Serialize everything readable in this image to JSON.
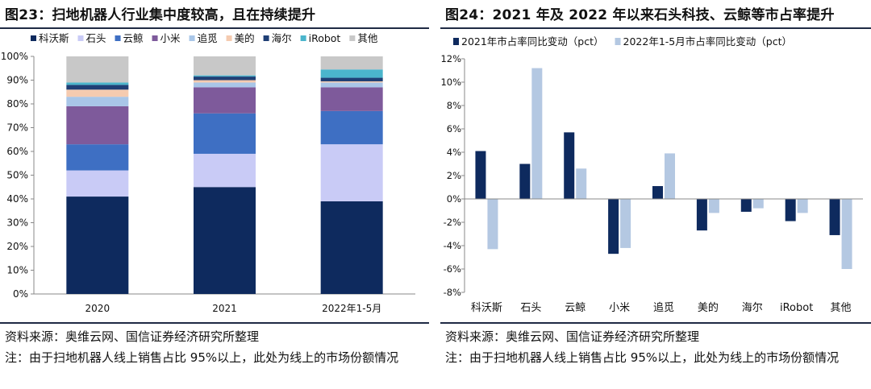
{
  "colors": {
    "科沃斯": "#0e2a5e",
    "石头": "#c9cbf6",
    "云鲸": "#3e6fc3",
    "小米": "#7e5a9b",
    "追觅": "#a9c6e8",
    "美的": "#f5cbb0",
    "海尔": "#1f3f75",
    "iRobot": "#4bb5cc",
    "其他": "#c8c8c8",
    "series2021": "#0e2a5e",
    "series2022": "#b4c8e2",
    "rule": "#1f2a44"
  },
  "left": {
    "title": "图23：扫地机器人行业集中度较高，且在持续提升",
    "source": "资料来源：奥维云网、国信证券经济研究所整理",
    "note": "注：由于扫地机器人线上销售占比 95%以上，此处为线上的市场份额情况"
  },
  "right": {
    "title": "图24：2021 年及 2022 年以来石头科技、云鲸等市占率提升",
    "source": "资料来源：奥维云网、国信证券经济研究所整理",
    "note": "注：由于扫地机器人线上销售占比 95%以上，此处为线上的市场份额情况"
  },
  "chart_data": [
    {
      "type": "bar",
      "stacked": true,
      "title": "",
      "categories": [
        "2020",
        "2021",
        "2022年1-5月"
      ],
      "ylim": [
        0,
        100
      ],
      "yticks": [
        "0%",
        "10%",
        "20%",
        "30%",
        "40%",
        "50%",
        "60%",
        "70%",
        "80%",
        "90%",
        "100%"
      ],
      "legend": "top",
      "series": [
        {
          "name": "科沃斯",
          "values": [
            41,
            45,
            39
          ]
        },
        {
          "name": "石头",
          "values": [
            11,
            14,
            24
          ]
        },
        {
          "name": "云鲸",
          "values": [
            11,
            17,
            14
          ]
        },
        {
          "name": "小米",
          "values": [
            16,
            11,
            10
          ]
        },
        {
          "name": "追觅",
          "values": [
            4,
            2,
            2
          ]
        },
        {
          "name": "美的",
          "values": [
            3,
            1,
            0.5
          ]
        },
        {
          "name": "海尔",
          "values": [
            2,
            1.5,
            1.5
          ]
        },
        {
          "name": "iRobot",
          "values": [
            1,
            0.5,
            3.5
          ]
        },
        {
          "name": "其他",
          "values": [
            11,
            8,
            5.5
          ]
        }
      ]
    },
    {
      "type": "bar",
      "title": "",
      "categories": [
        "科沃斯",
        "石头",
        "云鲸",
        "小米",
        "追觅",
        "美的",
        "海尔",
        "iRobot",
        "其他"
      ],
      "ylim": [
        -8,
        12
      ],
      "yticks": [
        "-8%",
        "-6%",
        "-4%",
        "-2%",
        "0%",
        "2%",
        "4%",
        "6%",
        "8%",
        "10%",
        "12%"
      ],
      "legend": "top",
      "series": [
        {
          "name": "2021年市占率同比变动（pct）",
          "values": [
            4.1,
            3.0,
            5.7,
            -4.7,
            1.1,
            -2.7,
            -1.1,
            -1.9,
            -3.1
          ]
        },
        {
          "name": "2022年1-5月市占率同比变动（pct）",
          "values": [
            -4.3,
            11.2,
            2.6,
            -4.2,
            3.9,
            -1.2,
            -0.8,
            -1.2,
            -6.0
          ]
        }
      ]
    }
  ]
}
